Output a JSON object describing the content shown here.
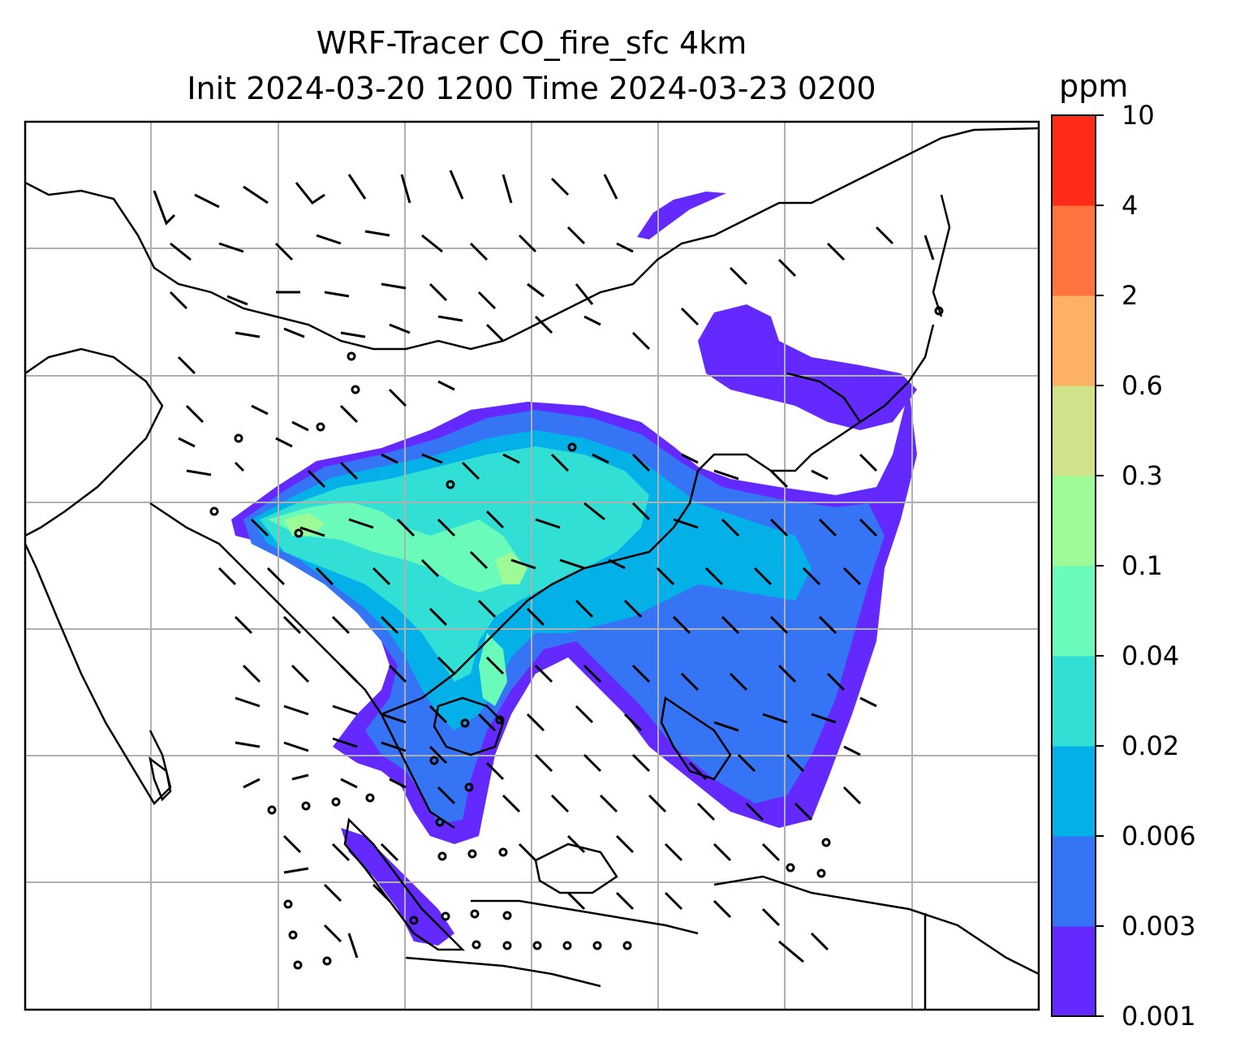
{
  "title": {
    "line1": "WRF-Tracer CO_fire_sfc 4km",
    "line2": "Init 2024-03-20 1200 Time 2024-03-23 0200"
  },
  "colorbar": {
    "unit": "ppm",
    "levels": [
      "0.001",
      "0.003",
      "0.006",
      "0.02",
      "0.04",
      "0.1",
      "0.3",
      "0.6",
      "2",
      "4",
      "10"
    ],
    "colors": [
      "#6429ff",
      "#3574f5",
      "#03b0e8",
      "#31dfd4",
      "#6afbbb",
      "#9cfa97",
      "#d0e38a",
      "#fdb263",
      "#ff743e",
      "#ff2b18"
    ]
  },
  "map": {
    "field": "CO_fire_sfc",
    "coastline_color": "#000000",
    "grid_color": "#b0b0b0"
  }
}
